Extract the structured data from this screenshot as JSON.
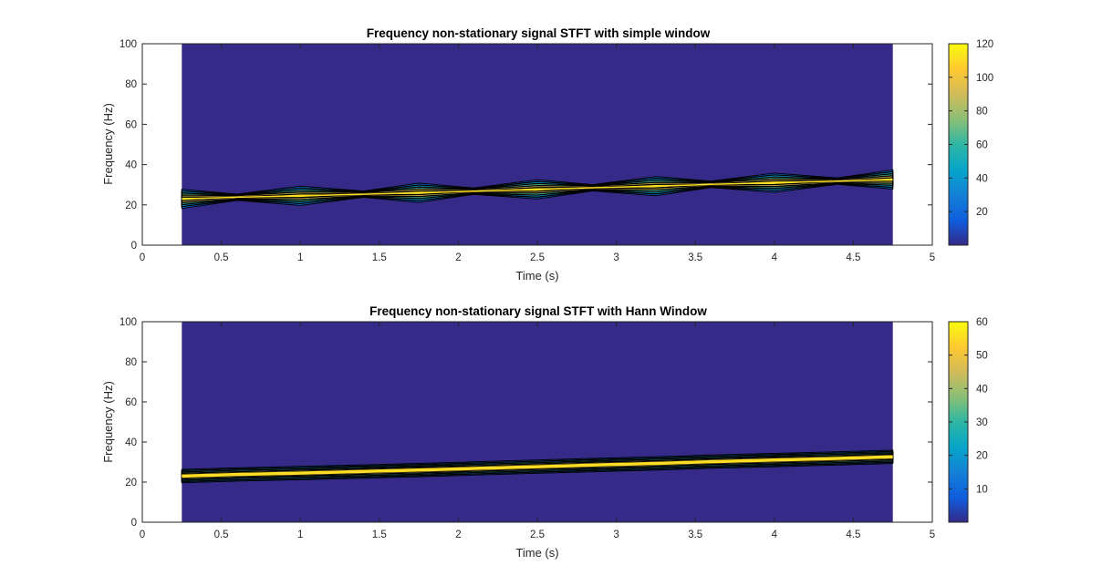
{
  "chart_data": [
    {
      "type": "heatmap",
      "title": "Frequency non-stationary signal STFT with simple window",
      "xlabel": "Time (s)",
      "ylabel": "Frequency (Hz)",
      "xlim": [
        0,
        5
      ],
      "ylim": [
        0,
        100
      ],
      "xticks": [
        "0",
        "0.5",
        "1",
        "1.5",
        "2",
        "2.5",
        "3",
        "3.5",
        "4",
        "4.5",
        "5"
      ],
      "yticks": [
        "0",
        "20",
        "40",
        "60",
        "80",
        "100"
      ],
      "data_time_range": [
        0.25,
        4.75
      ],
      "ridge": {
        "time": [
          0.25,
          0.6,
          1.0,
          1.4,
          1.75,
          2.1,
          2.5,
          2.85,
          3.25,
          3.6,
          4.0,
          4.4,
          4.75
        ],
        "frequency": [
          23,
          23.8,
          24.5,
          25.3,
          26,
          26.8,
          27.7,
          28.5,
          29.3,
          30.2,
          31,
          31.8,
          32.6
        ],
        "magnitude": [
          120,
          100,
          120,
          100,
          120,
          100,
          120,
          100,
          120,
          100,
          120,
          100,
          120
        ],
        "halfwidth": [
          4.5,
          1.2,
          4.5,
          1.2,
          4.5,
          1.2,
          4.5,
          1.2,
          4.5,
          1.2,
          4.5,
          1.2,
          4.5
        ]
      },
      "colorbar": {
        "clim": [
          0,
          120
        ],
        "ticks": [
          "20",
          "40",
          "60",
          "80",
          "100",
          "120"
        ]
      },
      "colormap": "parula",
      "background_color": "#352a87"
    },
    {
      "type": "heatmap",
      "title": "Frequency non-stationary signal STFT with Hann Window",
      "xlabel": "Time (s)",
      "ylabel": "Frequency (Hz)",
      "xlim": [
        0,
        5
      ],
      "ylim": [
        0,
        100
      ],
      "xticks": [
        "0",
        "0.5",
        "1",
        "1.5",
        "2",
        "2.5",
        "3",
        "3.5",
        "4",
        "4.5",
        "5"
      ],
      "yticks": [
        "0",
        "20",
        "40",
        "60",
        "80",
        "100"
      ],
      "data_time_range": [
        0.25,
        4.75
      ],
      "ridge": {
        "time": [
          0.25,
          0.6,
          1.0,
          1.4,
          1.75,
          2.1,
          2.5,
          2.85,
          3.25,
          3.6,
          4.0,
          4.4,
          4.75
        ],
        "frequency": [
          23,
          23.8,
          24.5,
          25.3,
          26,
          26.8,
          27.7,
          28.5,
          29.3,
          30.2,
          31,
          31.8,
          32.6
        ],
        "magnitude": [
          60,
          60,
          60,
          60,
          60,
          60,
          60,
          60,
          60,
          60,
          60,
          60,
          60
        ],
        "halfwidth": [
          3,
          3,
          3,
          3,
          3,
          3,
          3,
          3,
          3,
          3,
          3,
          3,
          3
        ]
      },
      "colorbar": {
        "clim": [
          0,
          60
        ],
        "ticks": [
          "10",
          "20",
          "30",
          "40",
          "50",
          "60"
        ]
      },
      "colormap": "parula",
      "background_color": "#352a87"
    }
  ]
}
